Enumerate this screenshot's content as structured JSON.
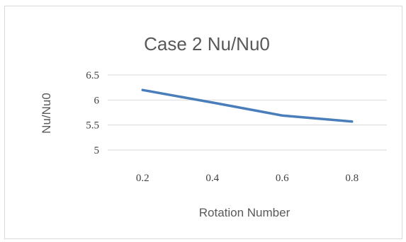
{
  "chart_data": {
    "type": "line",
    "title": "Case 2 Nu/Nu0",
    "xlabel": "Rotation Number",
    "ylabel": "Nu/Nu0",
    "categories": [
      "0.2",
      "0.4",
      "0.6",
      "0.8"
    ],
    "series": [
      {
        "values": [
          6.2,
          5.95,
          5.69,
          5.57
        ],
        "color": "#4a7ebb"
      }
    ],
    "yticks": [
      "5",
      "5.5",
      "6",
      "6.5"
    ],
    "ylim": [
      5,
      6.5
    ],
    "grid": true,
    "legend": "none"
  }
}
